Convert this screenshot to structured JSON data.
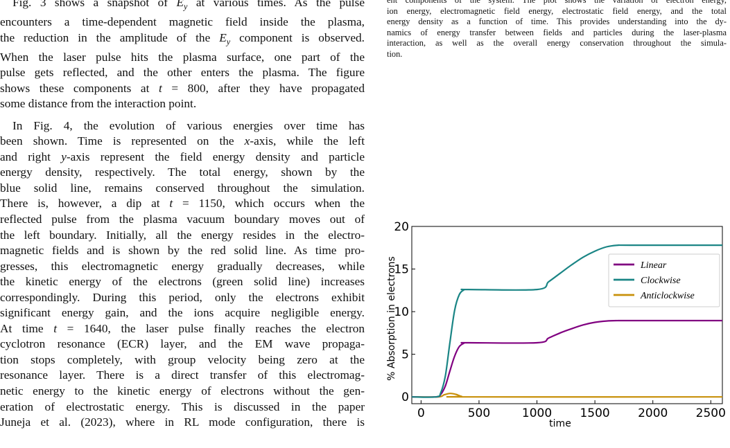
{
  "left_text": {
    "p1_lines": [
      "Fig. 3 shows a snapshot of E_y at various times. As the pulse",
      "encounters a time-dependent magnetic field inside the plasma,",
      "the reduction in the amplitude of the E_y component is observed.",
      "When the laser pulse hits the plasma surface, one part of the",
      "pulse gets reflected, and the other enters the plasma. The figure",
      "shows these components at t = 800, after they have propagated",
      "some distance from the interaction point."
    ],
    "p2_lines": [
      "In Fig. 4, the evolution of various energies over time has",
      "been shown. Time is represented on the x-axis, while the left",
      "and right y-axis represent the field energy density and particle",
      "energy density, respectively. The total energy, shown by the",
      "blue solid line, remains conserved throughout the simulation.",
      "There is, however, a dip at t = 1150, which occurs when the",
      "reflected pulse from the plasma vacuum boundary moves out of",
      "the left boundary. Initially, all the energy resides in the electro-",
      "magnetic fields and is shown by the red solid line. As time pro-",
      "gresses, this electromagnetic energy gradually decreases, while",
      "the kinetic energy of the electrons (green solid line) increases",
      "correspondingly. During this period, only the electrons exhibit",
      "significant energy gain, and the ions acquire negligible energy.",
      "At time t = 1640, the laser pulse finally reaches the electron",
      "cyclotron resonance (ECR) layer, and the EM wave propaga-",
      "tion stops completely, with group velocity being zero at the",
      "resonance layer. There is a direct transfer of this electromag-",
      "netic energy to the kinetic energy of electrons without the gen-",
      "eration of electrostatic energy. This is discussed in the paper",
      "Juneja et al. (2023), where in RL mode configuration, there is"
    ]
  },
  "caption_lines": [
    "ent components of the system. The plot shows the variation of electron energy,",
    "ion energy, electromagnetic field energy, electrostatic field energy, and the total",
    "energy density as a function of time. This provides understanding into the dy-",
    "namics of energy transfer between fields and particles during the laser-plasma",
    "interaction, as well as the overall energy conservation throughout the simula-",
    "tion."
  ],
  "chart_data": {
    "type": "line",
    "xlabel": "time",
    "ylabel": "% Absorption in electrons",
    "xlim": [
      -80,
      2600
    ],
    "ylim": [
      -0.8,
      20
    ],
    "xticks": [
      0,
      500,
      1000,
      1500,
      2000,
      2500
    ],
    "yticks": [
      0,
      5,
      10,
      15,
      20
    ],
    "legend_position": "upper-right",
    "series": [
      {
        "name": "Linear",
        "color": "#800080",
        "x": [
          -80,
          130,
          170,
          210,
          250,
          290,
          330,
          370,
          400,
          1000,
          1100,
          1200,
          1300,
          1400,
          1500,
          1600,
          1700,
          1800,
          2600
        ],
        "y": [
          0,
          0,
          0.3,
          1.3,
          3.1,
          4.8,
          5.9,
          6.3,
          6.35,
          6.35,
          6.9,
          7.5,
          8.0,
          8.45,
          8.75,
          8.9,
          8.95,
          8.95,
          8.95
        ]
      },
      {
        "name": "Clockwise",
        "color": "#1a8585",
        "x": [
          -80,
          130,
          170,
          210,
          250,
          290,
          330,
          370,
          400,
          1000,
          1100,
          1200,
          1300,
          1400,
          1500,
          1600,
          1700,
          1800,
          2600
        ],
        "y": [
          0,
          0,
          0.5,
          2.5,
          6.5,
          10.2,
          12.0,
          12.55,
          12.6,
          12.6,
          13.5,
          14.5,
          15.5,
          16.4,
          17.1,
          17.6,
          17.8,
          17.8,
          17.8
        ]
      },
      {
        "name": "Anticlockwise",
        "color": "#c8900a",
        "x": [
          -80,
          150,
          200,
          250,
          300,
          350,
          400,
          2600
        ],
        "y": [
          0,
          0,
          0.25,
          0.4,
          0.3,
          0.05,
          0,
          0
        ]
      }
    ]
  }
}
